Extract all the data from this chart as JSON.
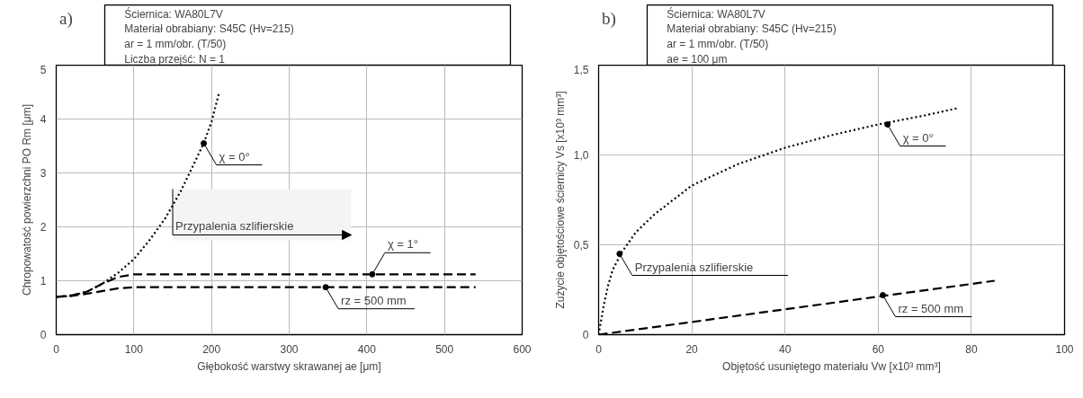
{
  "chart_data": [
    {
      "type": "line",
      "title": "a)",
      "xlabel": "Głębokość warstwy skrawanej ae [μm]",
      "ylabel": "Chropowatość powierzchni PO Rm [μm]",
      "xlim": [
        0,
        600
      ],
      "ylim": [
        0,
        5
      ],
      "xticks": [
        0,
        100,
        200,
        300,
        400,
        500,
        600
      ],
      "yticks": [
        0,
        1,
        2,
        3,
        4,
        5
      ],
      "grid": true,
      "series": [
        {
          "color": "#000000",
          "line_style": "dotted",
          "x": [
            0,
            20,
            40,
            60,
            80,
            100,
            120,
            140,
            160,
            180,
            190,
            200,
            210
          ],
          "values": [
            0.7,
            0.72,
            0.8,
            0.95,
            1.15,
            1.4,
            1.75,
            2.15,
            2.65,
            3.25,
            3.55,
            3.95,
            4.5
          ]
        },
        {
          "color": "#000000",
          "line_style": "dashed",
          "x": [
            0,
            20,
            40,
            60,
            80,
            100,
            540
          ],
          "values": [
            0.7,
            0.73,
            0.8,
            0.95,
            1.07,
            1.12,
            1.12
          ]
        },
        {
          "color": "#000000",
          "line_style": "dashed",
          "x": [
            0,
            20,
            40,
            60,
            80,
            100,
            540
          ],
          "values": [
            0.7,
            0.72,
            0.76,
            0.81,
            0.86,
            0.88,
            0.88
          ]
        }
      ],
      "bands": [
        {
          "axis": "x",
          "from": 150,
          "to": 380,
          "label": "Przypalenia szlifierskie",
          "color": "#f4f4f4"
        }
      ],
      "annotations": [
        "Ściernica: WA80L7V",
        "Materiał obrabiany: S45C (Hv=215)",
        "ar = 1 mm/obr. (T/50)",
        "Liczba przejść: N = 1",
        {
          "text": "χ = 0°",
          "x": 190,
          "y": 3.55
        },
        {
          "text": "χ = 1°",
          "x": 407,
          "y": 1.12
        },
        {
          "text": "rz = 500 mm",
          "x": 347,
          "y": 0.88
        }
      ]
    },
    {
      "type": "line",
      "title": "b)",
      "xlabel": "Objętość usuniętego materiału Vw [x10³ mm³]",
      "ylabel": "Zużycie objętościowe ściernicy Vs [x10³ mm³]",
      "xlim": [
        0,
        100
      ],
      "ylim": [
        0,
        1.5
      ],
      "xticks": [
        0,
        20,
        40,
        60,
        80,
        100
      ],
      "yticks": [
        0,
        {
          "value": 0.5,
          "label": "0,5"
        },
        {
          "value": 1.0,
          "label": "1,0"
        },
        {
          "value": 1.5,
          "label": "1,5"
        }
      ],
      "grid": true,
      "series": [
        {
          "color": "#000000",
          "line_style": "dotted",
          "x": [
            0,
            1,
            2,
            3,
            5,
            8,
            12,
            16,
            20,
            25,
            30,
            40,
            50,
            60,
            70,
            77
          ],
          "values": [
            0,
            0.15,
            0.27,
            0.36,
            0.46,
            0.57,
            0.67,
            0.75,
            0.83,
            0.89,
            0.95,
            1.04,
            1.11,
            1.17,
            1.22,
            1.26
          ]
        },
        {
          "color": "#000000",
          "line_style": "dashed",
          "x": [
            0,
            85
          ],
          "values": [
            0,
            0.3
          ]
        }
      ],
      "annotations": [
        "Ściernica: WA80L7V",
        "Materiał obrabiany: S45C (Hv=215)",
        "ar = 1 mm/obr. (T/50)",
        "ae = 100 μm",
        {
          "text": "χ = 0°",
          "x": 62,
          "y": 1.17
        },
        {
          "text": "Przypalenia szlifierskie",
          "x": 4.5,
          "y": 0.45
        },
        {
          "text": "rz = 500 mm",
          "x": 61,
          "y": 0.22
        }
      ]
    }
  ]
}
